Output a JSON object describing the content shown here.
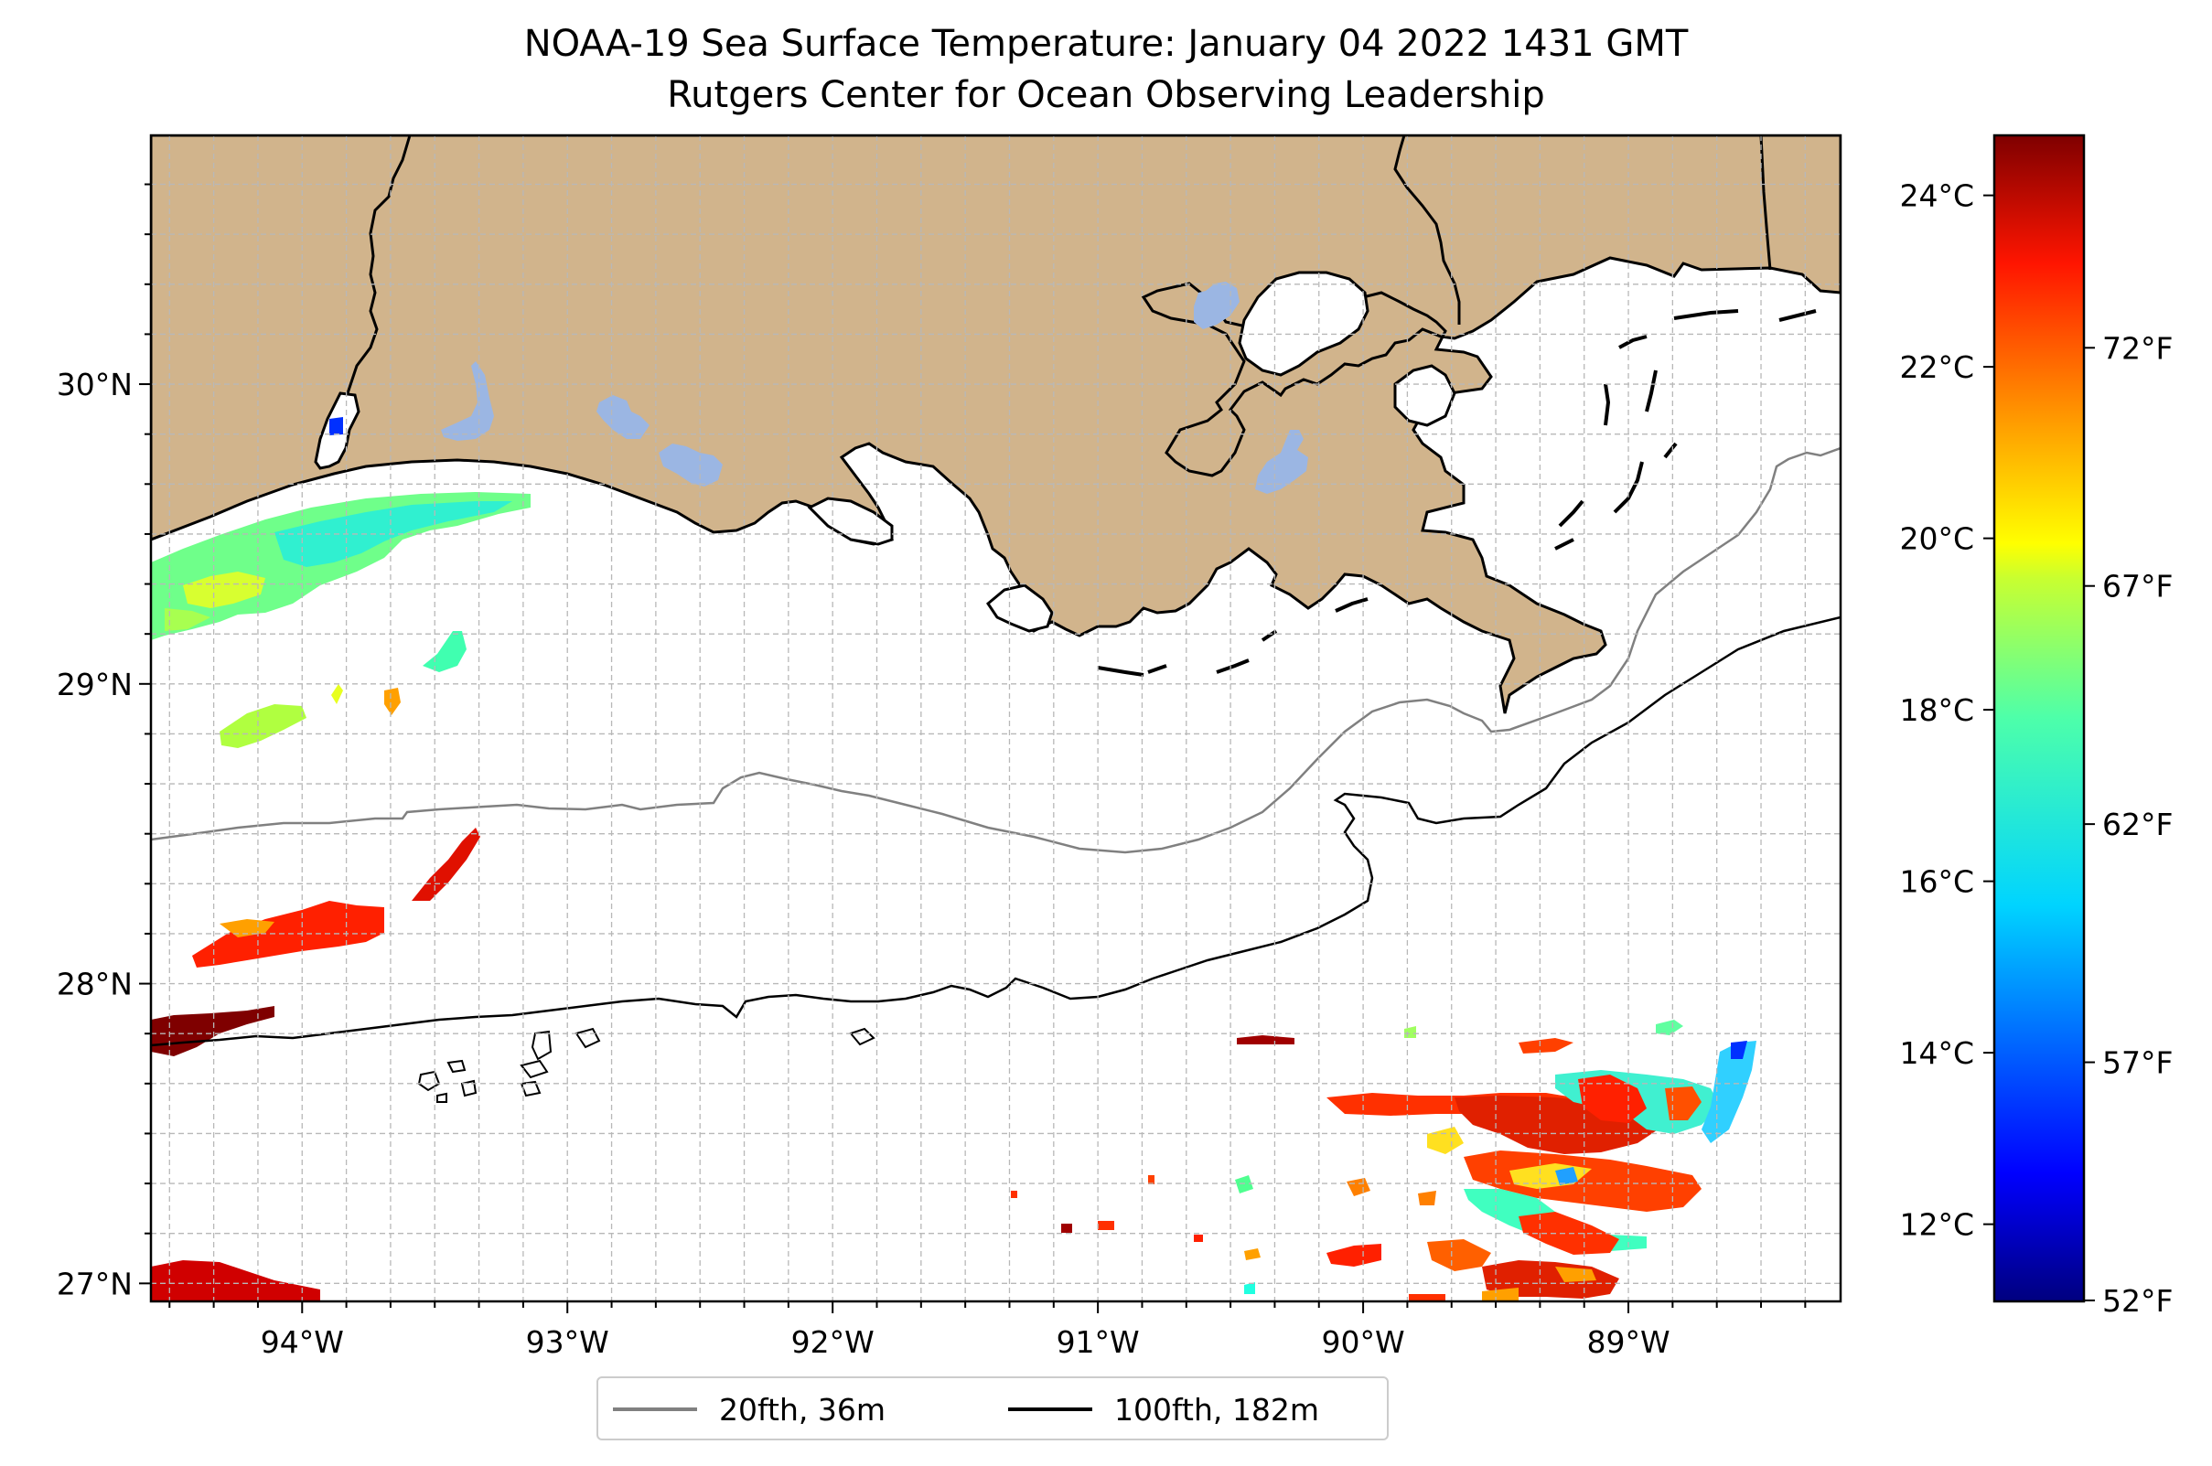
{
  "title": "NOAA-19 Sea Surface Temperature: January 04 2022 1431 GMT",
  "subtitle": "Rutgers Center for Ocean Observing Leadership",
  "map": {
    "extent": {
      "lon": [
        -94.57,
        -88.2
      ],
      "lat": [
        26.94,
        30.83
      ]
    },
    "lon_ticks": [
      {
        "value": -94,
        "label": "94°W"
      },
      {
        "value": -93,
        "label": "93°W"
      },
      {
        "value": -92,
        "label": "92°W"
      },
      {
        "value": -91,
        "label": "91°W"
      },
      {
        "value": -90,
        "label": "90°W"
      },
      {
        "value": -89,
        "label": "89°W"
      }
    ],
    "lat_ticks": [
      {
        "value": 30,
        "label": "30°N"
      },
      {
        "value": 29,
        "label": "29°N"
      },
      {
        "value": 28,
        "label": "28°N"
      },
      {
        "value": 27,
        "label": "27°N"
      }
    ],
    "gridlines": true,
    "land_color": "#d1b48c",
    "lake_color": "#9bb6e3",
    "isobaths": [
      {
        "label": "20fth, 36m",
        "color": "#808080"
      },
      {
        "label": "100fth, 182m",
        "color": "#000000"
      }
    ]
  },
  "colorbar": {
    "colormap": "jet",
    "range_c": [
      11.1,
      24.7
    ],
    "celsius_ticks": [
      {
        "value": 24,
        "label": "24°C"
      },
      {
        "value": 22,
        "label": "22°C"
      },
      {
        "value": 20,
        "label": "20°C"
      },
      {
        "value": 18,
        "label": "18°C"
      },
      {
        "value": 16,
        "label": "16°C"
      },
      {
        "value": 14,
        "label": "14°C"
      },
      {
        "value": 12,
        "label": "12°C"
      }
    ],
    "fahrenheit_ticks": [
      {
        "value": 72,
        "label": "72°F"
      },
      {
        "value": 67,
        "label": "67°F"
      },
      {
        "value": 62,
        "label": "62°F"
      },
      {
        "value": 57,
        "label": "57°F"
      },
      {
        "value": 52,
        "label": "52°F"
      }
    ]
  }
}
